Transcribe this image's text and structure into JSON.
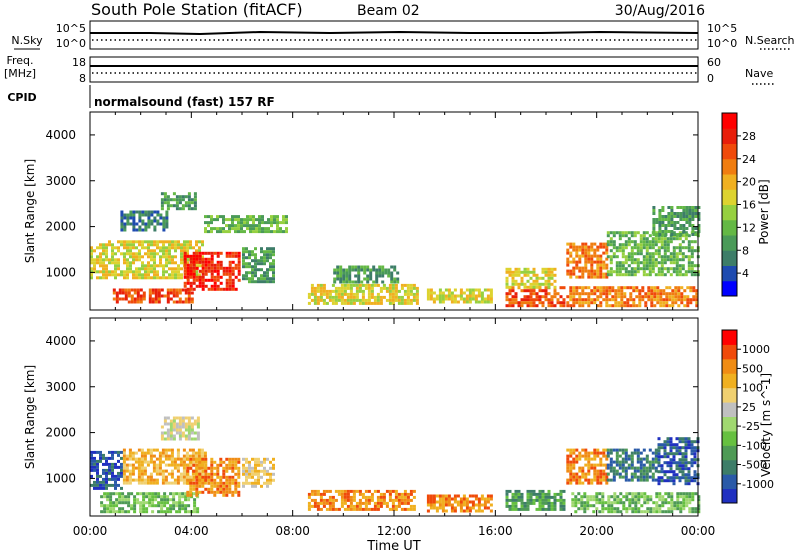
{
  "header": {
    "station": "South Pole Station (fitACF)",
    "beam": "Beam 02",
    "date": "30/Aug/2016"
  },
  "strips": {
    "nsky": {
      "label": "N.Sky",
      "ticks": [
        "10^5",
        "10^0"
      ]
    },
    "nsearch": {
      "label": "N.Search",
      "ticks": [
        "10^5",
        "10^0"
      ]
    },
    "freq": {
      "label_line1": "Freq.",
      "label_line2": "[MHz]",
      "ticks": [
        "18",
        "8"
      ]
    },
    "nave": {
      "label": "Nave",
      "ticks": [
        "60",
        "0"
      ]
    },
    "cpid": {
      "label": "CPID",
      "value": "normalsound (fast) 157 RF"
    }
  },
  "chart_data": [
    {
      "type": "heatmap",
      "name": "power",
      "ylabel": "Slant Range [km]",
      "xlabel": "Time UT",
      "xlim": [
        0,
        24
      ],
      "ylim": [
        180,
        4500
      ],
      "x_tick_labels": [
        "00:00",
        "04:00",
        "08:00",
        "12:00",
        "16:00",
        "20:00",
        "00:00"
      ],
      "y_tick_labels": [
        "1000",
        "2000",
        "3000",
        "4000"
      ],
      "colorbar": {
        "label": "Power [dB]",
        "ticks": [
          "4",
          "8",
          "12",
          "16",
          "20",
          "24",
          "28"
        ],
        "colors": [
          "#0000ff",
          "#1e4bb0",
          "#3d7d68",
          "#4a9a58",
          "#64b845",
          "#96d040",
          "#ddd330",
          "#f0b020",
          "#f07d10",
          "#f04a0a",
          "#e81e0a",
          "#ff0000"
        ]
      },
      "regions": [
        {
          "t0": 0.9,
          "t1": 4.0,
          "r0": 350,
          "r1": 650,
          "level": 9
        },
        {
          "t0": 0.0,
          "t1": 4.4,
          "r0": 900,
          "r1": 1700,
          "level": 6
        },
        {
          "t0": 3.7,
          "t1": 5.9,
          "r0": 650,
          "r1": 1450,
          "level": 10
        },
        {
          "t0": 1.2,
          "t1": 3.0,
          "r0": 1950,
          "r1": 2350,
          "level": 2
        },
        {
          "t0": 2.8,
          "t1": 4.2,
          "r0": 2400,
          "r1": 2750,
          "level": 3
        },
        {
          "t0": 6.0,
          "t1": 7.3,
          "r0": 800,
          "r1": 1550,
          "level": 3
        },
        {
          "t0": 4.5,
          "t1": 7.8,
          "r0": 1900,
          "r1": 2250,
          "level": 4
        },
        {
          "t0": 8.6,
          "t1": 12.9,
          "r0": 300,
          "r1": 750,
          "level": 6
        },
        {
          "t0": 9.6,
          "t1": 12.2,
          "r0": 800,
          "r1": 1150,
          "level": 3
        },
        {
          "t0": 13.3,
          "t1": 15.8,
          "r0": 350,
          "r1": 650,
          "level": 6
        },
        {
          "t0": 16.4,
          "t1": 18.7,
          "r0": 300,
          "r1": 700,
          "level": 9
        },
        {
          "t0": 16.4,
          "t1": 18.4,
          "r0": 700,
          "r1": 1100,
          "level": 6
        },
        {
          "t0": 18.8,
          "t1": 24.0,
          "r0": 300,
          "r1": 700,
          "level": 8
        },
        {
          "t0": 18.8,
          "t1": 20.4,
          "r0": 900,
          "r1": 1650,
          "level": 8
        },
        {
          "t0": 20.4,
          "t1": 24.0,
          "r0": 950,
          "r1": 1900,
          "level": 4
        },
        {
          "t0": 22.2,
          "t1": 24.0,
          "r0": 1800,
          "r1": 2450,
          "level": 3
        }
      ]
    },
    {
      "type": "heatmap",
      "name": "velocity",
      "ylabel": "Slant Range [km]",
      "xlabel": "Time UT",
      "xlim": [
        0,
        24
      ],
      "ylim": [
        180,
        4500
      ],
      "x_tick_labels": [
        "00:00",
        "04:00",
        "08:00",
        "12:00",
        "16:00",
        "20:00",
        "00:00"
      ],
      "y_tick_labels": [
        "1000",
        "2000",
        "3000",
        "4000"
      ],
      "colorbar": {
        "label": "Velocity [m s^-1]",
        "ticks": [
          "1000",
          "500",
          "100",
          "25",
          "-25",
          "-100",
          "-500",
          "-1000"
        ],
        "colors": [
          "#2030c0",
          "#2a5aa8",
          "#3d7d68",
          "#4e9a55",
          "#66c040",
          "#a0d870",
          "#c0c0c0",
          "#f0d070",
          "#f0b020",
          "#f08c14",
          "#f04a0a",
          "#ff0000"
        ]
      },
      "regions": [
        {
          "t0": 0.0,
          "t1": 1.2,
          "r0": 800,
          "r1": 1600,
          "level": 1
        },
        {
          "t0": 0.4,
          "t1": 4.2,
          "r0": 300,
          "r1": 700,
          "level": 4
        },
        {
          "t0": 1.3,
          "t1": 4.5,
          "r0": 900,
          "r1": 1650,
          "level": 8
        },
        {
          "t0": 3.8,
          "t1": 5.9,
          "r0": 600,
          "r1": 1450,
          "level": 9
        },
        {
          "t0": 2.8,
          "t1": 4.3,
          "r0": 1850,
          "r1": 2350,
          "level": 6
        },
        {
          "t0": 6.0,
          "t1": 7.3,
          "r0": 800,
          "r1": 1450,
          "level": 7
        },
        {
          "t0": 8.6,
          "t1": 12.8,
          "r0": 300,
          "r1": 750,
          "level": 9
        },
        {
          "t0": 13.3,
          "t1": 15.8,
          "r0": 300,
          "r1": 650,
          "level": 9
        },
        {
          "t0": 16.4,
          "t1": 18.7,
          "r0": 300,
          "r1": 750,
          "level": 3
        },
        {
          "t0": 18.8,
          "t1": 20.4,
          "r0": 900,
          "r1": 1650,
          "level": 9
        },
        {
          "t0": 19.0,
          "t1": 24.0,
          "r0": 300,
          "r1": 700,
          "level": 4
        },
        {
          "t0": 20.4,
          "t1": 22.4,
          "r0": 950,
          "r1": 1650,
          "level": 2
        },
        {
          "t0": 22.4,
          "t1": 24.0,
          "r0": 900,
          "r1": 1900,
          "level": 1
        }
      ]
    }
  ]
}
